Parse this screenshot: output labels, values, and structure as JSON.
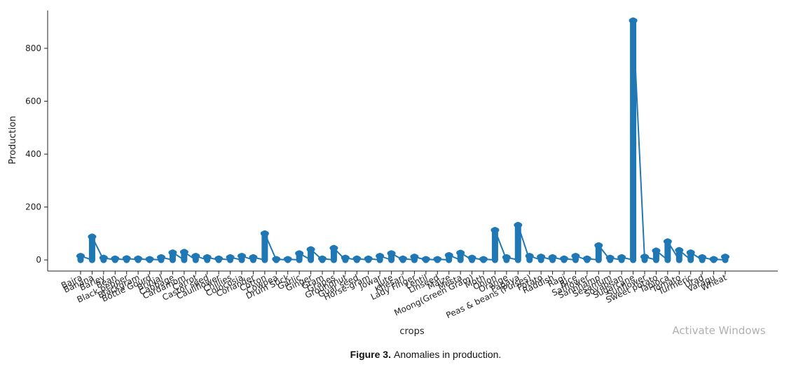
{
  "chart_data": {
    "type": "line",
    "ylabel": "Production",
    "xlabel": "crops",
    "categories": [
      "Bajra",
      "Banana",
      "Barley",
      "Bean",
      "Black pepper",
      "Blackgram",
      "Bottle Gourd",
      "Brinjal",
      "Cabbage",
      "Cardamom",
      "Carrot",
      "Castor seed",
      "Cauliflower",
      "Chillies",
      "Colocosia",
      "Coriander",
      "Cotton",
      "Cowpea",
      "Drum Stick",
      "Garlic",
      "Ginger",
      "Gram",
      "Grapes",
      "Groundnut",
      "Guar seed",
      "Horse-gram",
      "Jowar",
      "Jute",
      "Khesari",
      "Lady Finger",
      "Lentil",
      "Linseed",
      "Maize",
      "Mesta",
      "Moong(Green Gram)",
      "Moth",
      "Onion",
      "Orange",
      "Papaya",
      "Peas & beans (Pulses)",
      "Potato",
      "Raddish",
      "Ragi",
      "Rice",
      "Safflower",
      "Sannhamp",
      "Sesamum",
      "Soyabean",
      "Sugarcane",
      "Sunflower",
      "Sweet potato",
      "Tapioca",
      "Tomato",
      "Turmeric",
      "Urad",
      "Varagu",
      "Wheat"
    ],
    "values": [
      15,
      88,
      8,
      5,
      6,
      5,
      3,
      10,
      28,
      30,
      15,
      10,
      5,
      10,
      15,
      10,
      100,
      3,
      3,
      25,
      40,
      5,
      45,
      8,
      5,
      5,
      15,
      25,
      5,
      12,
      3,
      3,
      18,
      27,
      8,
      3,
      113,
      10,
      132,
      15,
      12,
      10,
      5,
      15,
      5,
      55,
      8,
      10,
      905,
      12,
      35,
      70,
      37,
      28,
      10,
      3,
      12
    ],
    "color": "#1f77b4",
    "ylim": [
      -42,
      943
    ],
    "yticks": [
      0,
      200,
      400,
      600,
      800
    ]
  },
  "caption": {
    "label": "Figure 3.",
    "text": "Anomalies in production."
  },
  "watermark": "Activate Windows"
}
